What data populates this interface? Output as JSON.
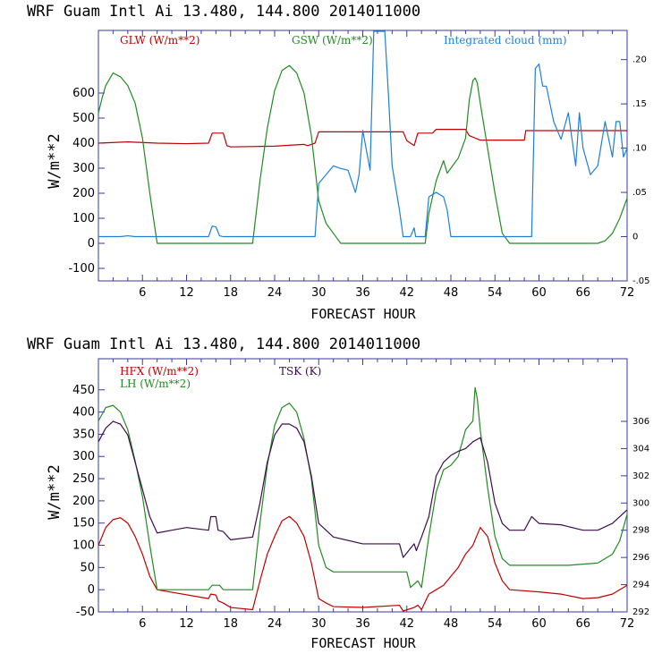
{
  "chart_data": [
    {
      "type": "line",
      "header": "WRF  Guam Intl Ai  13.480, 144.800  2014011000",
      "xlabel": "FORECAST HOUR",
      "ylabel": "W/m**2",
      "xlim": [
        0,
        72
      ],
      "ylim": [
        -150,
        850
      ],
      "x_ticks": [
        6,
        12,
        18,
        24,
        30,
        36,
        42,
        48,
        54,
        60,
        66,
        72
      ],
      "y_ticks": [
        -100,
        0,
        100,
        200,
        300,
        400,
        500,
        600
      ],
      "right_axis": {
        "ylim": [
          -0.05,
          0.233
        ],
        "ticks": [
          -0.05,
          0,
          0.05,
          0.1,
          0.15,
          0.2
        ],
        "tick_labels": [
          "-.05",
          "0",
          ".05",
          ".10",
          ".15",
          ".20"
        ]
      },
      "colors": {
        "GLW": "#c00000",
        "GSW": "#228b22",
        "CLOUD": "#1e7fd8",
        "frame": "#3a3aa0"
      },
      "series": [
        {
          "name": "GLW (W/m**2)",
          "key": "GLW",
          "axis": "left",
          "x": [
            0,
            4,
            8,
            12,
            15,
            15.5,
            17,
            17.5,
            18,
            24,
            28,
            28.5,
            29.5,
            30,
            36,
            41.5,
            42,
            43,
            43.5,
            45.5,
            46,
            50,
            50.5,
            52,
            58,
            58.2,
            72
          ],
          "values": [
            400,
            405,
            400,
            398,
            400,
            440,
            440,
            390,
            385,
            388,
            395,
            390,
            400,
            445,
            445,
            445,
            410,
            390,
            440,
            440,
            455,
            455,
            430,
            412,
            412,
            450,
            450
          ]
        },
        {
          "name": "GSW (W/m**2)",
          "key": "GSW",
          "axis": "left",
          "x": [
            0,
            0.5,
            1,
            2,
            3,
            4,
            5,
            6,
            7,
            8,
            21,
            22,
            23,
            24,
            25,
            26,
            27,
            28,
            29,
            30,
            31,
            32,
            33,
            44.5,
            45,
            46,
            47,
            47.5,
            48,
            49,
            49.5,
            50,
            50.5,
            51,
            51.3,
            51.6,
            52,
            53,
            54,
            55,
            56,
            68,
            69,
            70,
            71,
            72
          ],
          "values": [
            520,
            580,
            630,
            680,
            665,
            630,
            560,
            420,
            200,
            0,
            0,
            250,
            460,
            610,
            690,
            710,
            680,
            600,
            430,
            170,
            80,
            40,
            0,
            0,
            120,
            250,
            330,
            280,
            300,
            340,
            380,
            420,
            570,
            650,
            660,
            640,
            560,
            380,
            200,
            40,
            0,
            0,
            10,
            40,
            100,
            180
          ]
        },
        {
          "name": "Integrated cloud (mm)",
          "key": "CLOUD",
          "axis": "right",
          "x": [
            0,
            3,
            4,
            5,
            8,
            15,
            15.5,
            16,
            16.5,
            17,
            29.5,
            30,
            31,
            32,
            33,
            34,
            35,
            35.5,
            36,
            37,
            37.5,
            39,
            39.5,
            40,
            41,
            41.5,
            42.5,
            43,
            43.2,
            44.5,
            45,
            46,
            47,
            47.5,
            48,
            59,
            59.5,
            60,
            60.5,
            61,
            62,
            63,
            64,
            65,
            65.5,
            66,
            67,
            68,
            69,
            70,
            70.5,
            71,
            71.5,
            72
          ],
          "values": [
            0,
            0,
            0.001,
            0,
            0,
            0,
            0.012,
            0.011,
            0.001,
            0,
            0,
            0.06,
            0.07,
            0.08,
            0.077,
            0.075,
            0.05,
            0.07,
            0.12,
            0.075,
            0.235,
            0.24,
            0.16,
            0.08,
            0.03,
            0,
            0,
            0.01,
            0,
            0,
            0.045,
            0.05,
            0.045,
            0.03,
            0,
            0,
            0.19,
            0.195,
            0.17,
            0.17,
            0.13,
            0.11,
            0.14,
            0.08,
            0.14,
            0.1,
            0.07,
            0.08,
            0.13,
            0.09,
            0.13,
            0.13,
            0.09,
            0.1
          ]
        }
      ]
    },
    {
      "type": "line",
      "header": "WRF  Guam Intl Ai  13.480, 144.800  2014011000",
      "xlabel": "FORECAST HOUR",
      "ylabel": "W/m**2",
      "xlim": [
        0,
        72
      ],
      "ylim": [
        -50,
        520
      ],
      "x_ticks": [
        6,
        12,
        18,
        24,
        30,
        36,
        42,
        48,
        54,
        60,
        66,
        72
      ],
      "y_ticks": [
        -50,
        0,
        50,
        100,
        150,
        200,
        250,
        300,
        350,
        400,
        450
      ],
      "right_axis": {
        "ylim": [
          292,
          310.6
        ],
        "ticks": [
          292,
          294,
          296,
          298,
          300,
          302,
          304,
          306
        ],
        "tick_labels": [
          "292",
          "294",
          "296",
          "298",
          "300",
          "302",
          "304",
          "306"
        ]
      },
      "colors": {
        "HFX": "#c00000",
        "LH": "#228b22",
        "TSK": "#3b0d4a",
        "frame": "#3a3aa0"
      },
      "series": [
        {
          "name": "HFX (W/m**2)",
          "key": "HFX",
          "axis": "left",
          "x": [
            0,
            1,
            2,
            3,
            4,
            5,
            6,
            7,
            8,
            15,
            15.3,
            16,
            16.3,
            17,
            18,
            21,
            22,
            23,
            24,
            25,
            26,
            27,
            28,
            29,
            30,
            31,
            32,
            36,
            41,
            41.5,
            43,
            43.5,
            44,
            45,
            46,
            47,
            48,
            49,
            50,
            51,
            52,
            53,
            54,
            55,
            56,
            60,
            63,
            66,
            68,
            70,
            72
          ],
          "values": [
            100,
            140,
            158,
            162,
            150,
            120,
            80,
            30,
            0,
            -20,
            -10,
            -12,
            -25,
            -30,
            -40,
            -45,
            20,
            80,
            120,
            155,
            165,
            150,
            120,
            60,
            -20,
            -30,
            -38,
            -40,
            -35,
            -50,
            -40,
            -35,
            -45,
            -10,
            0,
            10,
            30,
            50,
            80,
            100,
            140,
            120,
            60,
            20,
            0,
            -5,
            -10,
            -20,
            -18,
            -10,
            10
          ]
        },
        {
          "name": "LH (W/m**2)",
          "key": "LH",
          "axis": "left",
          "x": [
            0,
            1,
            2,
            3,
            4,
            5,
            6,
            7,
            8,
            15,
            15.5,
            16.5,
            17,
            21,
            22,
            23,
            24,
            25,
            26,
            27,
            28,
            29,
            30,
            31,
            32,
            42,
            42.5,
            43.5,
            44,
            45,
            46,
            47,
            48,
            49,
            50,
            51,
            51.3,
            51.6,
            52,
            53,
            54,
            55,
            56,
            60,
            64,
            68,
            70,
            71,
            72
          ],
          "values": [
            380,
            410,
            415,
            400,
            360,
            290,
            210,
            100,
            0,
            0,
            10,
            10,
            0,
            0,
            150,
            280,
            370,
            410,
            420,
            400,
            340,
            250,
            100,
            50,
            40,
            40,
            5,
            20,
            5,
            120,
            220,
            270,
            280,
            300,
            360,
            380,
            455,
            430,
            360,
            230,
            120,
            70,
            55,
            55,
            55,
            60,
            80,
            110,
            170
          ]
        },
        {
          "name": "TSK (K)",
          "key": "TSK",
          "axis": "right",
          "x": [
            0,
            1,
            2,
            3,
            4,
            5,
            6,
            7,
            8,
            10,
            12,
            15,
            15.3,
            16,
            16.3,
            17,
            18,
            21,
            22,
            23,
            24,
            25,
            26,
            27,
            28,
            29,
            30,
            32,
            36,
            41,
            41.5,
            43,
            43.3,
            44,
            45,
            46,
            47,
            48,
            49,
            50,
            51,
            52,
            53,
            54,
            55,
            56,
            58,
            59,
            60,
            63,
            66,
            68,
            70,
            72
          ],
          "values": [
            304.5,
            305.5,
            306,
            305.8,
            305,
            303,
            301,
            299,
            297.8,
            298,
            298.2,
            298,
            299,
            299,
            298,
            297.9,
            297.3,
            297.5,
            300,
            303,
            305,
            305.8,
            305.8,
            305.5,
            304.5,
            302,
            298.5,
            297.5,
            297,
            297,
            296,
            297,
            296.5,
            297.5,
            299,
            302,
            303,
            303.5,
            303.8,
            304,
            304.5,
            304.8,
            303,
            300,
            298.5,
            298,
            298,
            299,
            298.5,
            298.4,
            298,
            298,
            298.5,
            299.5
          ]
        }
      ]
    }
  ]
}
